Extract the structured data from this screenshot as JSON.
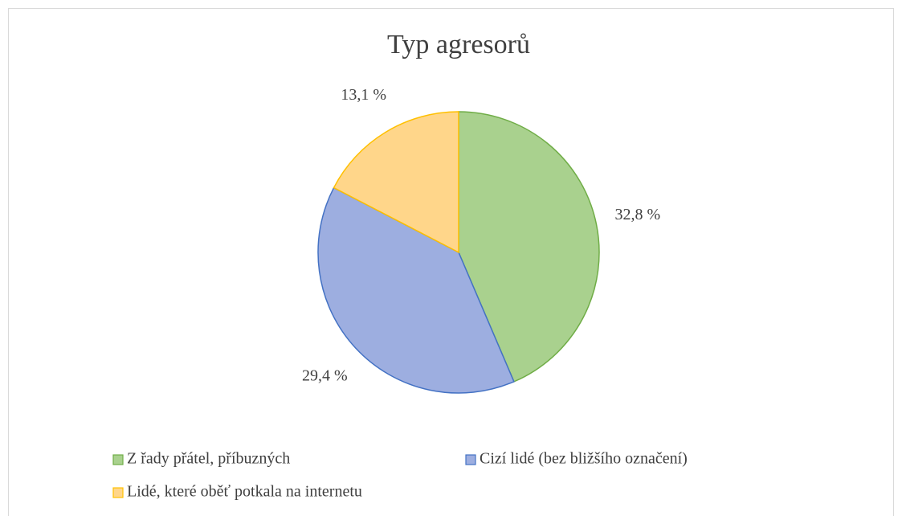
{
  "chart_data": {
    "type": "pie",
    "title": "Typ agresorů",
    "categories": [
      "Z řady přátel, příbuzných",
      "Cizí lidé (bez bližšího označení)",
      "Lidé, které oběť potkala na internetu"
    ],
    "values": [
      32.8,
      29.4,
      13.1
    ],
    "value_labels": [
      "32,8 %",
      "29,4 %",
      "13,1 %"
    ],
    "colors": [
      "#a9d18e",
      "#9daee0",
      "#ffd68a"
    ],
    "edge_colors": [
      "#70ad47",
      "#4472c4",
      "#ffc000"
    ],
    "legend": "bottom"
  }
}
